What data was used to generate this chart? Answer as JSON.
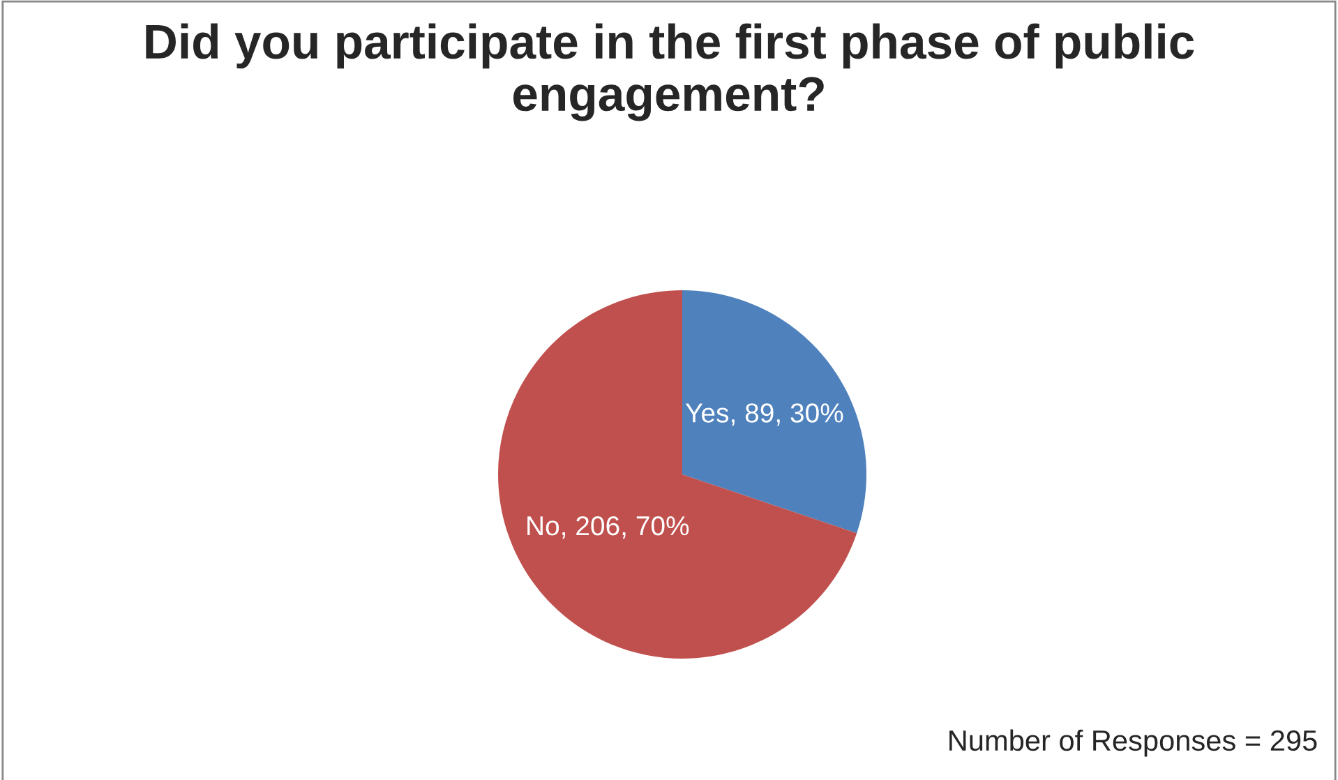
{
  "chart_data": {
    "type": "pie",
    "title": "Did you participate in the first phase of public engagement?",
    "categories": [
      "Yes",
      "No"
    ],
    "values": [
      89,
      206
    ],
    "colors": [
      "#4f81bd",
      "#c0504d"
    ],
    "value_labels": [
      "89, 30%",
      "206, 70%"
    ],
    "annotations": [
      "Number of Responses = 295"
    ]
  }
}
